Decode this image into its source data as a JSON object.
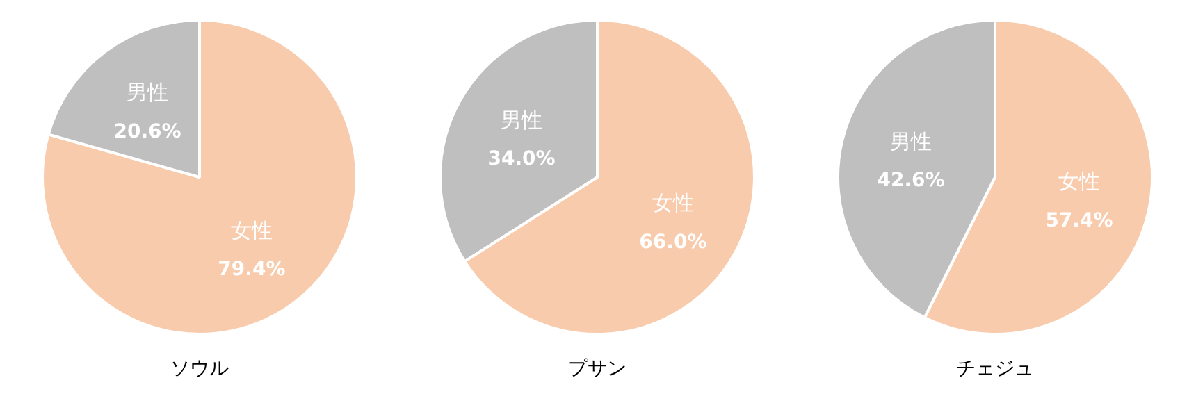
{
  "chart_data": [
    {
      "type": "pie",
      "title": "ソウル",
      "categories": [
        "女性",
        "男性"
      ],
      "values": [
        79.4,
        20.6
      ],
      "colors": [
        "#f8cbad",
        "#bfbfbf"
      ],
      "value_labels": [
        "79.4%",
        "20.6%"
      ]
    },
    {
      "type": "pie",
      "title": "プサン",
      "categories": [
        "女性",
        "男性"
      ],
      "values": [
        66.0,
        34.0
      ],
      "colors": [
        "#f8cbad",
        "#bfbfbf"
      ],
      "value_labels": [
        "66.0%",
        "34.0%"
      ]
    },
    {
      "type": "pie",
      "title": "チェジュ",
      "categories": [
        "女性",
        "男性"
      ],
      "values": [
        57.4,
        42.6
      ],
      "colors": [
        "#f8cbad",
        "#bfbfbf"
      ],
      "value_labels": [
        "57.4%",
        "42.6%"
      ]
    }
  ]
}
